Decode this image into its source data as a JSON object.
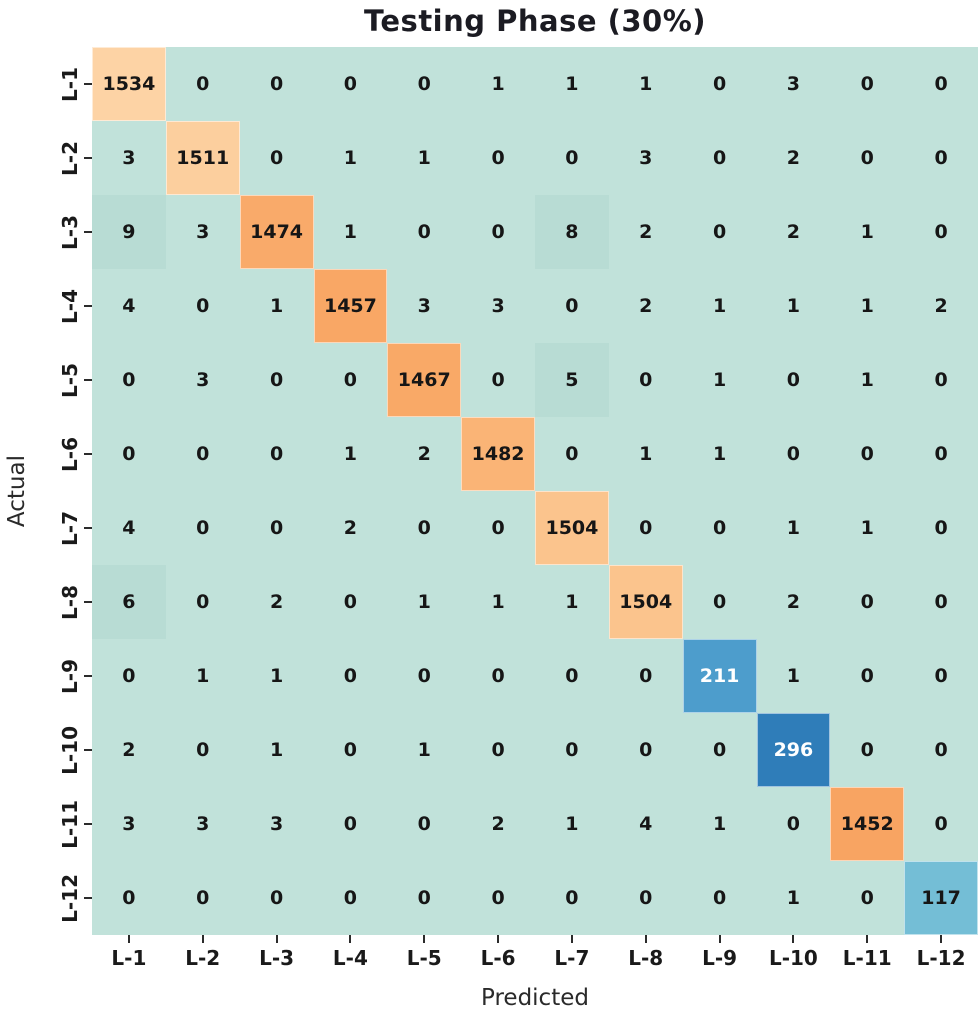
{
  "chart_data": {
    "type": "heatmap",
    "title": "Testing Phase (30%)",
    "xlabel": "Predicted",
    "ylabel": "Actual",
    "x_labels": [
      "L-1",
      "L-2",
      "L-3",
      "L-4",
      "L-5",
      "L-6",
      "L-7",
      "L-8",
      "L-9",
      "L-10",
      "L-11",
      "L-12"
    ],
    "y_labels": [
      "L-1",
      "L-2",
      "L-3",
      "L-4",
      "L-5",
      "L-6",
      "L-7",
      "L-8",
      "L-9",
      "L-10",
      "L-11",
      "L-12"
    ],
    "matrix": [
      [
        1534,
        0,
        0,
        0,
        0,
        1,
        1,
        1,
        0,
        3,
        0,
        0
      ],
      [
        3,
        1511,
        0,
        1,
        1,
        0,
        0,
        3,
        0,
        2,
        0,
        0
      ],
      [
        9,
        3,
        1474,
        1,
        0,
        0,
        8,
        2,
        0,
        2,
        1,
        0
      ],
      [
        4,
        0,
        1,
        1457,
        3,
        3,
        0,
        2,
        1,
        1,
        1,
        2
      ],
      [
        0,
        3,
        0,
        0,
        1467,
        0,
        5,
        0,
        1,
        0,
        1,
        0
      ],
      [
        0,
        0,
        0,
        1,
        2,
        1482,
        0,
        1,
        1,
        0,
        0,
        0
      ],
      [
        4,
        0,
        0,
        2,
        0,
        0,
        1504,
        0,
        0,
        1,
        1,
        0
      ],
      [
        6,
        0,
        2,
        0,
        1,
        1,
        1,
        1504,
        0,
        2,
        0,
        0
      ],
      [
        0,
        1,
        1,
        0,
        0,
        0,
        0,
        0,
        211,
        1,
        0,
        0
      ],
      [
        2,
        0,
        1,
        0,
        1,
        0,
        0,
        0,
        0,
        296,
        0,
        0
      ],
      [
        3,
        3,
        3,
        0,
        0,
        2,
        1,
        4,
        1,
        0,
        1452,
        0
      ],
      [
        0,
        0,
        0,
        0,
        0,
        0,
        0,
        0,
        0,
        1,
        0,
        117
      ]
    ],
    "colors": {
      "cell_background": "#c1e2da",
      "cell_background_mid": "#b8dcd4",
      "text_dark": "#161616",
      "text_light": "#ffffff",
      "tick_color": "#2b2b2b",
      "diagonal": [
        "#fdd3a5",
        "#fccf9e",
        "#f9aa6a",
        "#f9a765",
        "#f9a967",
        "#fab476",
        "#fbc48d",
        "#fbc48d",
        "#4d9dcc",
        "#2f7db9",
        "#f8a462",
        "#74bed6"
      ],
      "diagonal_text": [
        "dark",
        "dark",
        "dark",
        "dark",
        "dark",
        "dark",
        "dark",
        "dark",
        "light",
        "light",
        "dark",
        "dark"
      ]
    },
    "legend": "none",
    "grid": false
  }
}
